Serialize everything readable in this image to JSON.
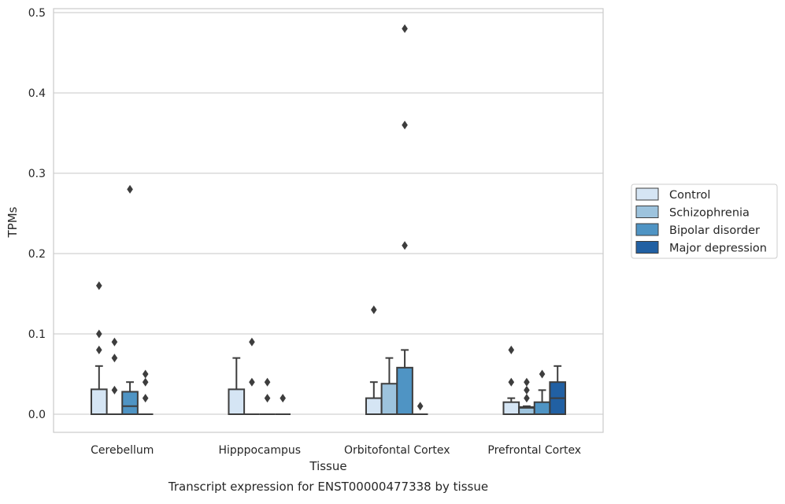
{
  "chart_data": {
    "type": "box",
    "title": "",
    "caption": "Transcript expression for ENST00000477338 by tissue",
    "xlabel": "Tissue",
    "ylabel": "TPMs",
    "ylim": [
      -0.023,
      0.505
    ],
    "yticks": [
      0.0,
      0.1,
      0.2,
      0.3,
      0.4,
      0.5
    ],
    "ytick_labels": [
      "0.0",
      "0.1",
      "0.2",
      "0.3",
      "0.4",
      "0.5"
    ],
    "categories": [
      "Cerebellum",
      "Hipppocampus",
      "Orbitofontal Cortex",
      "Prefrontal Cortex"
    ],
    "grid": "horizontal",
    "legend_position": "right",
    "series": [
      {
        "name": "Control",
        "color": "#d5e5f4",
        "boxes": [
          {
            "q1": 0.0,
            "median": 0.0,
            "q3": 0.031,
            "whisker_low": 0.0,
            "whisker_high": 0.06,
            "outliers": [
              0.08,
              0.1,
              0.16
            ]
          },
          {
            "q1": 0.0,
            "median": 0.0,
            "q3": 0.031,
            "whisker_low": 0.0,
            "whisker_high": 0.07,
            "outliers": []
          },
          {
            "q1": 0.0,
            "median": 0.0,
            "q3": 0.02,
            "whisker_low": 0.0,
            "whisker_high": 0.04,
            "outliers": [
              0.13
            ]
          },
          {
            "q1": 0.0,
            "median": 0.0,
            "q3": 0.015,
            "whisker_low": 0.0,
            "whisker_high": 0.02,
            "outliers": [
              0.04,
              0.08
            ]
          }
        ]
      },
      {
        "name": "Schizophrenia",
        "color": "#9dc3dd",
        "boxes": [
          {
            "q1": 0.0,
            "median": 0.0,
            "q3": 0.0,
            "whisker_low": 0.0,
            "whisker_high": 0.0,
            "outliers": [
              0.03,
              0.07,
              0.09
            ]
          },
          {
            "q1": 0.0,
            "median": 0.0,
            "q3": 0.0,
            "whisker_low": 0.0,
            "whisker_high": 0.0,
            "outliers": [
              0.04,
              0.09
            ]
          },
          {
            "q1": 0.0,
            "median": 0.0,
            "q3": 0.038,
            "whisker_low": 0.0,
            "whisker_high": 0.07,
            "outliers": []
          },
          {
            "q1": 0.0,
            "median": 0.008,
            "q3": 0.009,
            "whisker_low": 0.0,
            "whisker_high": 0.01,
            "outliers": [
              0.02,
              0.03,
              0.04
            ]
          }
        ]
      },
      {
        "name": "Bipolar disorder",
        "color": "#4f94c4",
        "boxes": [
          {
            "q1": 0.0,
            "median": 0.01,
            "q3": 0.028,
            "whisker_low": 0.0,
            "whisker_high": 0.04,
            "outliers": [
              0.28
            ]
          },
          {
            "q1": 0.0,
            "median": 0.0,
            "q3": 0.0,
            "whisker_low": 0.0,
            "whisker_high": 0.0,
            "outliers": [
              0.02,
              0.04
            ]
          },
          {
            "q1": 0.0,
            "median": 0.0,
            "q3": 0.058,
            "whisker_low": 0.0,
            "whisker_high": 0.08,
            "outliers": [
              0.21,
              0.36,
              0.48
            ]
          },
          {
            "q1": 0.0,
            "median": 0.0,
            "q3": 0.015,
            "whisker_low": 0.0,
            "whisker_high": 0.03,
            "outliers": [
              0.05
            ]
          }
        ]
      },
      {
        "name": "Major depression",
        "color": "#2160a3",
        "boxes": [
          {
            "q1": 0.0,
            "median": 0.0,
            "q3": 0.0,
            "whisker_low": 0.0,
            "whisker_high": 0.0,
            "outliers": [
              0.02,
              0.04,
              0.05
            ]
          },
          {
            "q1": 0.0,
            "median": 0.0,
            "q3": 0.0,
            "whisker_low": 0.0,
            "whisker_high": 0.0,
            "outliers": [
              0.02
            ]
          },
          {
            "q1": 0.0,
            "median": 0.0,
            "q3": 0.0,
            "whisker_low": 0.0,
            "whisker_high": 0.0,
            "outliers": [
              0.01
            ]
          },
          {
            "q1": 0.0,
            "median": 0.02,
            "q3": 0.04,
            "whisker_low": 0.0,
            "whisker_high": 0.06,
            "outliers": []
          }
        ]
      }
    ]
  }
}
